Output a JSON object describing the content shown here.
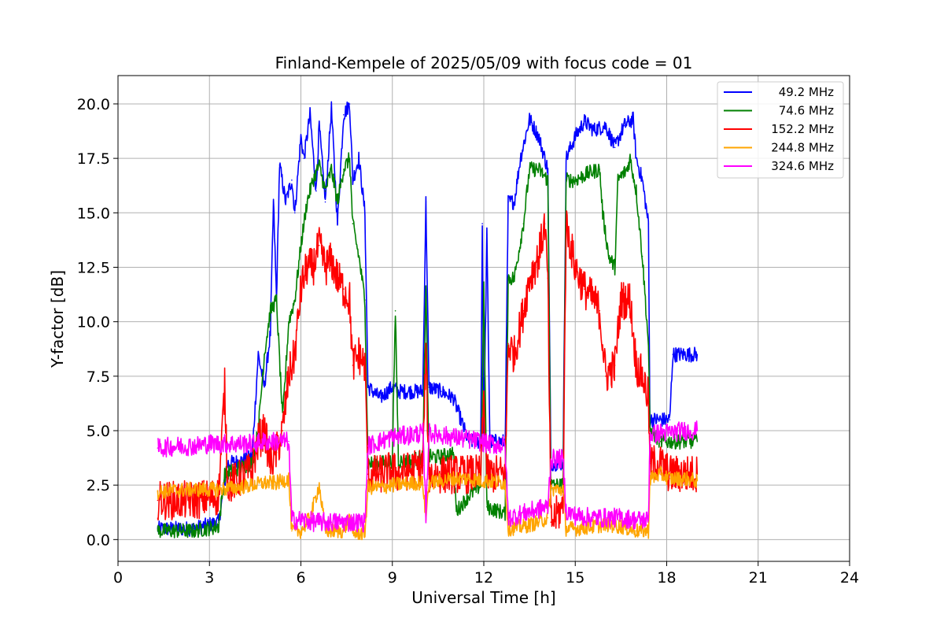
{
  "chart_data": {
    "type": "line",
    "title": "Finland-Kempele of 2025/05/09 with focus code = 01",
    "xlabel": "Universal Time [h]",
    "ylabel": "Y-factor [dB]",
    "xlim": [
      0,
      24
    ],
    "ylim": [
      -1,
      21.3
    ],
    "xticks": [
      0,
      3,
      6,
      9,
      12,
      15,
      18,
      21,
      24
    ],
    "xtick_labels": [
      "0",
      "3",
      "6",
      "9",
      "12",
      "15",
      "18",
      "21",
      "24"
    ],
    "yticks": [
      0,
      2.5,
      5,
      7.5,
      10,
      12.5,
      15,
      17.5,
      20
    ],
    "ytick_labels": [
      "0.0",
      "2.5",
      "5.0",
      "7.5",
      "10.0",
      "12.5",
      "15.0",
      "17.5",
      "20.0"
    ],
    "grid": true,
    "legend_position": "top-right",
    "series": [
      {
        "name": "49.2 MHz",
        "color": "#0000ff",
        "points": [
          [
            1.3,
            0.5
          ],
          [
            2.5,
            0.5
          ],
          [
            3.3,
            0.8
          ],
          [
            3.6,
            3.5
          ],
          [
            4.0,
            3.6
          ],
          [
            4.4,
            3.8
          ],
          [
            4.6,
            8.5
          ],
          [
            4.8,
            7.0
          ],
          [
            5.0,
            9.5
          ],
          [
            5.1,
            15.5
          ],
          [
            5.2,
            11.0
          ],
          [
            5.3,
            17.2
          ],
          [
            5.5,
            15.5
          ],
          [
            5.7,
            16.5
          ],
          [
            5.8,
            15.0
          ],
          [
            6.0,
            18.5
          ],
          [
            6.1,
            17.5
          ],
          [
            6.3,
            19.5
          ],
          [
            6.5,
            16.0
          ],
          [
            6.6,
            19.0
          ],
          [
            6.8,
            15.5
          ],
          [
            7.0,
            19.8
          ],
          [
            7.2,
            14.5
          ],
          [
            7.4,
            19.5
          ],
          [
            7.6,
            20.0
          ],
          [
            7.7,
            16.5
          ],
          [
            7.9,
            17.5
          ],
          [
            8.1,
            15.0
          ],
          [
            8.2,
            7.0
          ],
          [
            8.6,
            6.5
          ],
          [
            9.0,
            7.0
          ],
          [
            9.2,
            6.8
          ],
          [
            9.6,
            6.8
          ],
          [
            10.0,
            6.8
          ],
          [
            10.1,
            15.5
          ],
          [
            10.2,
            7.0
          ],
          [
            10.6,
            6.8
          ],
          [
            11.0,
            6.5
          ],
          [
            11.5,
            4.5
          ],
          [
            11.9,
            4.5
          ],
          [
            11.95,
            14.5
          ],
          [
            12.0,
            4.5
          ],
          [
            12.1,
            14.0
          ],
          [
            12.2,
            4.5
          ],
          [
            12.7,
            4.5
          ],
          [
            12.8,
            15.5
          ],
          [
            13.0,
            15.5
          ],
          [
            13.2,
            17.5
          ],
          [
            13.5,
            19.3
          ],
          [
            13.8,
            18.5
          ],
          [
            14.1,
            17.0
          ],
          [
            14.2,
            3.5
          ],
          [
            14.6,
            3.5
          ],
          [
            14.7,
            17.5
          ],
          [
            15.0,
            18.5
          ],
          [
            15.3,
            19.2
          ],
          [
            15.6,
            18.8
          ],
          [
            16.0,
            19.0
          ],
          [
            16.3,
            18.0
          ],
          [
            16.6,
            19.0
          ],
          [
            16.9,
            19.3
          ],
          [
            17.0,
            17.5
          ],
          [
            17.2,
            16.5
          ],
          [
            17.4,
            14.5
          ],
          [
            17.45,
            5.5
          ],
          [
            17.8,
            5.5
          ],
          [
            18.1,
            5.5
          ],
          [
            18.2,
            8.5
          ],
          [
            18.6,
            8.5
          ],
          [
            19.0,
            8.5
          ]
        ]
      },
      {
        "name": "74.6 MHz",
        "color": "#008000",
        "points": [
          [
            1.3,
            0.4
          ],
          [
            2.5,
            0.4
          ],
          [
            3.3,
            0.6
          ],
          [
            3.5,
            3.0
          ],
          [
            4.0,
            3.3
          ],
          [
            4.4,
            3.5
          ],
          [
            4.6,
            5.0
          ],
          [
            4.8,
            8.5
          ],
          [
            5.0,
            10.5
          ],
          [
            5.2,
            11.0
          ],
          [
            5.4,
            5.5
          ],
          [
            5.6,
            10.0
          ],
          [
            5.8,
            11.0
          ],
          [
            6.0,
            13.5
          ],
          [
            6.2,
            15.5
          ],
          [
            6.4,
            16.5
          ],
          [
            6.6,
            17.2
          ],
          [
            6.8,
            16.0
          ],
          [
            7.0,
            17.0
          ],
          [
            7.2,
            15.5
          ],
          [
            7.4,
            17.0
          ],
          [
            7.6,
            17.5
          ],
          [
            7.7,
            14.5
          ],
          [
            7.9,
            13.0
          ],
          [
            8.1,
            11.0
          ],
          [
            8.2,
            3.5
          ],
          [
            8.6,
            3.5
          ],
          [
            9.0,
            3.6
          ],
          [
            9.1,
            10.5
          ],
          [
            9.2,
            3.6
          ],
          [
            9.6,
            3.6
          ],
          [
            10.0,
            3.8
          ],
          [
            10.1,
            11.5
          ],
          [
            10.2,
            3.8
          ],
          [
            10.6,
            3.8
          ],
          [
            11.0,
            4.0
          ],
          [
            11.1,
            1.3
          ],
          [
            11.5,
            2.0
          ],
          [
            11.9,
            2.5
          ],
          [
            12.0,
            11.5
          ],
          [
            12.1,
            1.5
          ],
          [
            12.7,
            1.2
          ],
          [
            12.8,
            12.0
          ],
          [
            13.0,
            12.0
          ],
          [
            13.3,
            14.5
          ],
          [
            13.5,
            17.0
          ],
          [
            13.8,
            17.0
          ],
          [
            14.1,
            16.5
          ],
          [
            14.2,
            2.5
          ],
          [
            14.6,
            2.5
          ],
          [
            14.7,
            16.5
          ],
          [
            15.0,
            16.5
          ],
          [
            15.4,
            16.8
          ],
          [
            15.8,
            17.0
          ],
          [
            15.9,
            15.0
          ],
          [
            16.1,
            13.0
          ],
          [
            16.3,
            12.5
          ],
          [
            16.4,
            16.5
          ],
          [
            16.7,
            17.0
          ],
          [
            16.8,
            17.5
          ],
          [
            17.0,
            16.0
          ],
          [
            17.2,
            13.0
          ],
          [
            17.4,
            9.0
          ],
          [
            17.45,
            5.0
          ],
          [
            17.8,
            4.5
          ],
          [
            18.1,
            4.5
          ],
          [
            18.6,
            4.5
          ],
          [
            19.0,
            4.5
          ]
        ]
      },
      {
        "name": "152.2 MHz",
        "color": "#ff0000",
        "points": [
          [
            1.3,
            1.8
          ],
          [
            2.5,
            1.8
          ],
          [
            3.3,
            2.0
          ],
          [
            3.5,
            7.0
          ],
          [
            3.6,
            2.5
          ],
          [
            4.0,
            2.8
          ],
          [
            4.4,
            3.2
          ],
          [
            4.6,
            4.5
          ],
          [
            4.8,
            5.0
          ],
          [
            5.0,
            3.5
          ],
          [
            5.2,
            4.0
          ],
          [
            5.4,
            5.0
          ],
          [
            5.6,
            7.5
          ],
          [
            5.8,
            8.5
          ],
          [
            6.0,
            11.5
          ],
          [
            6.2,
            12.5
          ],
          [
            6.4,
            12.5
          ],
          [
            6.6,
            13.5
          ],
          [
            6.8,
            12.5
          ],
          [
            7.0,
            12.8
          ],
          [
            7.2,
            12.0
          ],
          [
            7.4,
            11.5
          ],
          [
            7.6,
            11.0
          ],
          [
            7.7,
            8.0
          ],
          [
            7.9,
            8.5
          ],
          [
            8.1,
            8.0
          ],
          [
            8.2,
            3.0
          ],
          [
            8.6,
            3.0
          ],
          [
            9.0,
            3.2
          ],
          [
            9.2,
            3.0
          ],
          [
            9.6,
            3.2
          ],
          [
            10.0,
            3.4
          ],
          [
            10.1,
            8.5
          ],
          [
            10.2,
            3.0
          ],
          [
            10.6,
            3.0
          ],
          [
            11.0,
            3.0
          ],
          [
            11.5,
            3.0
          ],
          [
            11.9,
            3.0
          ],
          [
            12.0,
            6.5
          ],
          [
            12.1,
            3.0
          ],
          [
            12.7,
            3.0
          ],
          [
            12.8,
            9.0
          ],
          [
            13.0,
            8.5
          ],
          [
            13.3,
            10.5
          ],
          [
            13.5,
            12.0
          ],
          [
            13.8,
            13.0
          ],
          [
            14.0,
            14.5
          ],
          [
            14.1,
            12.0
          ],
          [
            14.2,
            0.8
          ],
          [
            14.6,
            1.5
          ],
          [
            14.7,
            14.5
          ],
          [
            15.0,
            12.5
          ],
          [
            15.3,
            11.5
          ],
          [
            15.6,
            11.0
          ],
          [
            15.8,
            10.5
          ],
          [
            16.0,
            7.5
          ],
          [
            16.3,
            8.0
          ],
          [
            16.5,
            11.0
          ],
          [
            16.8,
            11.0
          ],
          [
            17.0,
            8.0
          ],
          [
            17.2,
            7.5
          ],
          [
            17.4,
            6.5
          ],
          [
            17.45,
            3.5
          ],
          [
            17.8,
            3.5
          ],
          [
            18.1,
            3.0
          ],
          [
            18.6,
            3.0
          ],
          [
            19.0,
            3.0
          ]
        ]
      },
      {
        "name": "244.8 MHz",
        "color": "#ffa500",
        "points": [
          [
            1.3,
            2.2
          ],
          [
            2.5,
            2.3
          ],
          [
            3.3,
            2.3
          ],
          [
            4.0,
            2.4
          ],
          [
            4.4,
            2.5
          ],
          [
            4.8,
            2.6
          ],
          [
            5.2,
            2.6
          ],
          [
            5.6,
            2.8
          ],
          [
            5.7,
            0.4
          ],
          [
            6.0,
            0.4
          ],
          [
            6.3,
            1.0
          ],
          [
            6.6,
            2.5
          ],
          [
            6.8,
            0.4
          ],
          [
            7.4,
            0.4
          ],
          [
            7.6,
            1.0
          ],
          [
            7.7,
            0.3
          ],
          [
            8.1,
            0.3
          ],
          [
            8.2,
            2.4
          ],
          [
            8.6,
            2.4
          ],
          [
            9.0,
            2.5
          ],
          [
            9.6,
            2.6
          ],
          [
            10.0,
            2.6
          ],
          [
            10.1,
            1.0
          ],
          [
            10.2,
            2.6
          ],
          [
            10.6,
            2.7
          ],
          [
            11.0,
            2.8
          ],
          [
            11.5,
            2.8
          ],
          [
            11.9,
            2.7
          ],
          [
            12.1,
            2.7
          ],
          [
            12.7,
            2.6
          ],
          [
            12.8,
            0.5
          ],
          [
            13.3,
            0.6
          ],
          [
            13.8,
            0.8
          ],
          [
            14.1,
            1.0
          ],
          [
            14.2,
            2.3
          ],
          [
            14.6,
            2.3
          ],
          [
            14.7,
            0.5
          ],
          [
            15.0,
            0.5
          ],
          [
            15.6,
            0.6
          ],
          [
            16.0,
            0.7
          ],
          [
            16.5,
            0.6
          ],
          [
            17.0,
            0.4
          ],
          [
            17.4,
            0.4
          ],
          [
            17.45,
            2.8
          ],
          [
            17.8,
            3.0
          ],
          [
            18.1,
            2.8
          ],
          [
            18.6,
            2.8
          ],
          [
            19.0,
            2.7
          ]
        ]
      },
      {
        "name": "324.6 MHz",
        "color": "#ff00ff",
        "points": [
          [
            1.3,
            4.2
          ],
          [
            2.0,
            4.3
          ],
          [
            2.5,
            4.3
          ],
          [
            3.0,
            4.4
          ],
          [
            3.3,
            4.4
          ],
          [
            3.6,
            4.4
          ],
          [
            4.0,
            4.4
          ],
          [
            4.4,
            4.4
          ],
          [
            4.8,
            4.5
          ],
          [
            5.2,
            4.5
          ],
          [
            5.6,
            4.5
          ],
          [
            5.7,
            0.9
          ],
          [
            6.0,
            0.9
          ],
          [
            6.5,
            0.8
          ],
          [
            7.0,
            0.8
          ],
          [
            7.4,
            0.8
          ],
          [
            7.7,
            0.8
          ],
          [
            8.1,
            0.8
          ],
          [
            8.2,
            4.3
          ],
          [
            8.6,
            4.5
          ],
          [
            9.0,
            4.7
          ],
          [
            9.6,
            4.8
          ],
          [
            10.0,
            4.9
          ],
          [
            10.1,
            1.2
          ],
          [
            10.2,
            4.9
          ],
          [
            10.6,
            4.8
          ],
          [
            11.0,
            4.7
          ],
          [
            11.5,
            4.6
          ],
          [
            11.9,
            4.5
          ],
          [
            12.1,
            4.4
          ],
          [
            12.7,
            4.3
          ],
          [
            12.8,
            1.0
          ],
          [
            13.3,
            1.2
          ],
          [
            13.8,
            1.4
          ],
          [
            14.1,
            1.5
          ],
          [
            14.2,
            3.7
          ],
          [
            14.6,
            3.7
          ],
          [
            14.7,
            1.3
          ],
          [
            15.0,
            1.1
          ],
          [
            15.6,
            1.0
          ],
          [
            16.0,
            1.0
          ],
          [
            16.5,
            1.0
          ],
          [
            17.0,
            0.9
          ],
          [
            17.4,
            0.9
          ],
          [
            17.45,
            4.8
          ],
          [
            17.8,
            4.9
          ],
          [
            18.1,
            4.9
          ],
          [
            18.6,
            5.0
          ],
          [
            19.0,
            5.0
          ]
        ]
      }
    ]
  }
}
